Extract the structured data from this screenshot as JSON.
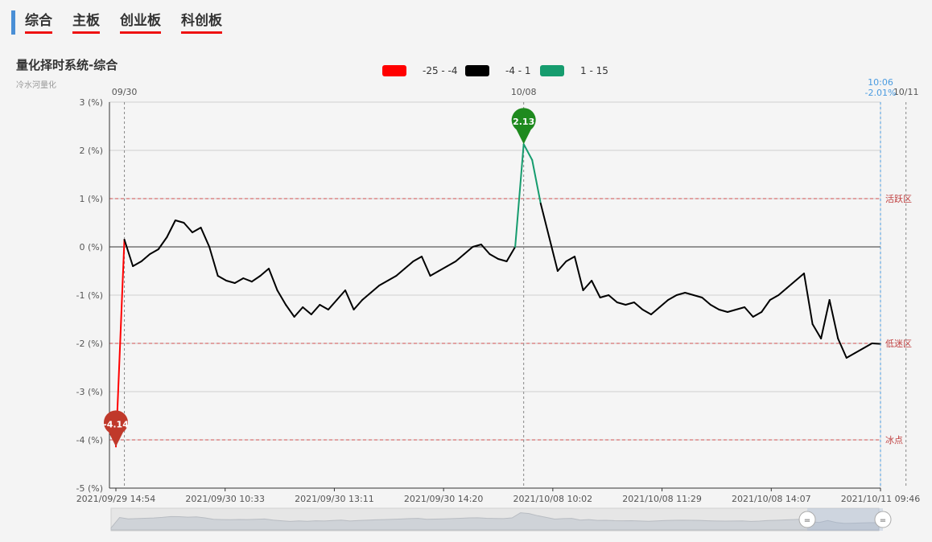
{
  "tabs": [
    {
      "label": "综合"
    },
    {
      "label": "主板"
    },
    {
      "label": "创业板"
    },
    {
      "label": "科创板"
    }
  ],
  "header": {
    "title": "量化择时系统-综合",
    "subtitle": "冷水河量化"
  },
  "colors": {
    "red": "#ff0000",
    "black": "#000000",
    "green": "#169c6e",
    "zone_line": "#d05050",
    "cursor": "#4a9be0"
  },
  "chart_data": {
    "type": "line",
    "title": "量化择时系统-综合",
    "ylim": [
      -5,
      3
    ],
    "yticks": [
      "3 (%)",
      "2 (%)",
      "1 (%)",
      "0 (%)",
      "-1 (%)",
      "-2 (%)",
      "-3 (%)",
      "-4 (%)",
      "-5 (%)"
    ],
    "legend": [
      {
        "label": "-25 - -4",
        "color": "#ff0000"
      },
      {
        "label": "-4 - 1",
        "color": "#000000"
      },
      {
        "label": "1 - 15",
        "color": "#169c6e"
      }
    ],
    "x_ticks": [
      "2021/09/29 14:54",
      "2021/09/30 10:33",
      "2021/09/30 13:11",
      "2021/09/30 14:20",
      "2021/10/08 10:02",
      "2021/10/08 11:29",
      "2021/10/08 14:07",
      "2021/10/11 09:46"
    ],
    "day_markers": [
      {
        "label": "09/30",
        "x_index": 1
      },
      {
        "label": "10/08",
        "x_index": 48
      },
      {
        "label": "10/11",
        "x_index": 93
      }
    ],
    "zones": [
      {
        "label": "活跃区",
        "y": 1
      },
      {
        "label": "低迷区",
        "y": -2
      },
      {
        "label": "冰点",
        "y": -4
      }
    ],
    "max_marker": {
      "label": "2.13",
      "value": 2.13
    },
    "min_marker": {
      "label": "-4.14",
      "value": -4.14
    },
    "cursor": {
      "time": "10:06",
      "value": "-2.01%"
    },
    "series": [
      {
        "values": [
          -4.14,
          0.15,
          -0.4,
          -0.3,
          -0.15,
          -0.05,
          0.2,
          0.55,
          0.5,
          0.3,
          0.4,
          0.0,
          -0.6,
          -0.7,
          -0.75,
          -0.65,
          -0.72,
          -0.6,
          -0.45,
          -0.9,
          -1.2,
          -1.45,
          -1.25,
          -1.4,
          -1.2,
          -1.3,
          -1.1,
          -0.9,
          -1.3,
          -1.1,
          -0.95,
          -0.8,
          -0.7,
          -0.6,
          -0.45,
          -0.3,
          -0.2,
          -0.6,
          -0.5,
          -0.4,
          -0.3,
          -0.15,
          0.0,
          0.05,
          -0.15,
          -0.25,
          -0.3,
          0.0,
          2.13,
          1.8,
          0.9,
          0.2,
          -0.5,
          -0.3,
          -0.2,
          -0.9,
          -0.7,
          -1.05,
          -1.0,
          -1.15,
          -1.2,
          -1.15,
          -1.3,
          -1.4,
          -1.25,
          -1.1,
          -1.0,
          -0.95,
          -1.0,
          -1.05,
          -1.2,
          -1.3,
          -1.35,
          -1.3,
          -1.25,
          -1.45,
          -1.35,
          -1.1,
          -1.0,
          -0.85,
          -0.7,
          -0.55,
          -1.6,
          -1.9,
          -1.1,
          -1.9,
          -2.3,
          -2.2,
          -2.1,
          -2.0,
          -2.01
        ]
      }
    ]
  }
}
